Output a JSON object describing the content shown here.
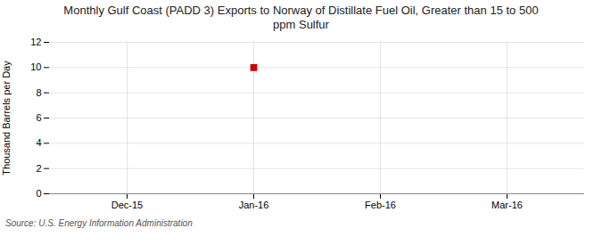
{
  "chart_data": {
    "type": "scatter",
    "title": "Monthly Gulf Coast (PADD 3) Exports to Norway of Distillate Fuel Oil, Greater than 15 to 500\nppm Sulfur",
    "ylabel": "Thousand Barrels per Day",
    "source": "Source: U.S. Energy Information Administration",
    "categories": [
      "Dec-15",
      "Jan-16",
      "Feb-16",
      "Mar-16"
    ],
    "values": [
      null,
      10,
      null,
      null
    ],
    "color": "#cc0000",
    "marker": "square",
    "ylim": [
      0,
      12
    ],
    "yticks": [
      0,
      2,
      4,
      6,
      8,
      10,
      12
    ],
    "grid": true
  }
}
